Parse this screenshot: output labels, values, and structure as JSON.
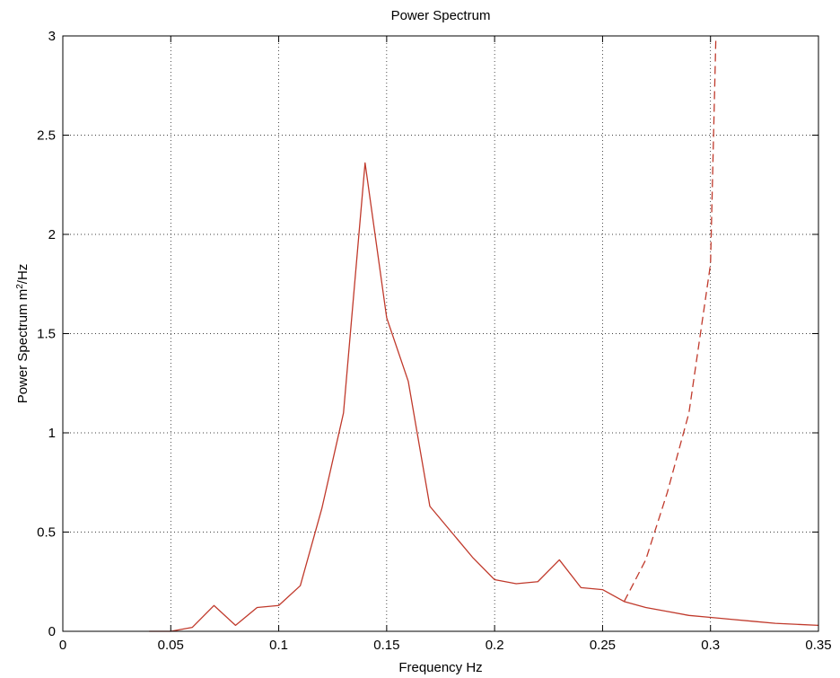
{
  "chart_data": {
    "type": "line",
    "title": "Power Spectrum",
    "xlabel": "Frequency Hz",
    "ylabel": {
      "prefix": "Power Spectrum m",
      "superscript": "2",
      "suffix": "/Hz"
    },
    "xlim": [
      0,
      0.35
    ],
    "ylim": [
      0,
      3
    ],
    "xticks": [
      "0",
      "0.05",
      "0.1",
      "0.15",
      "0.2",
      "0.25",
      "0.3",
      "0.35"
    ],
    "xtick_values": [
      0,
      0.05,
      0.1,
      0.15,
      0.2,
      0.25,
      0.3,
      0.35
    ],
    "yticks": [
      "0",
      "0.5",
      "1",
      "1.5",
      "2",
      "2.5",
      "3"
    ],
    "ytick_values": [
      0,
      0.5,
      1,
      1.5,
      2,
      2.5,
      3
    ],
    "grid": true,
    "series": [
      {
        "style": "solid",
        "color": "#c0392b",
        "x": [
          0.04,
          0.05,
          0.06,
          0.07,
          0.08,
          0.09,
          0.1,
          0.11,
          0.12,
          0.13,
          0.14,
          0.15,
          0.16,
          0.17,
          0.18,
          0.19,
          0.2,
          0.21,
          0.22,
          0.23,
          0.24,
          0.25,
          0.26,
          0.27,
          0.28,
          0.29,
          0.3,
          0.31,
          0.32,
          0.33,
          0.34,
          0.35
        ],
        "y": [
          0.0,
          0.0,
          0.02,
          0.13,
          0.03,
          0.12,
          0.13,
          0.23,
          0.62,
          1.1,
          2.36,
          1.58,
          1.26,
          0.63,
          0.5,
          0.37,
          0.26,
          0.24,
          0.25,
          0.36,
          0.22,
          0.21,
          0.15,
          0.12,
          0.1,
          0.08,
          0.07,
          0.06,
          0.05,
          0.04,
          0.035,
          0.03
        ]
      },
      {
        "style": "dashed",
        "color": "#c0392b",
        "x": [
          0.26,
          0.27,
          0.28,
          0.29,
          0.3,
          0.3025
        ],
        "y": [
          0.15,
          0.36,
          0.7,
          1.1,
          1.85,
          3.0
        ]
      }
    ]
  }
}
